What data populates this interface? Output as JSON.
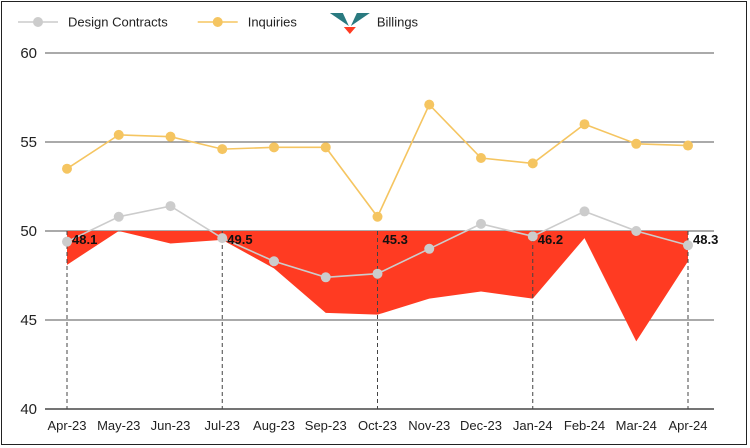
{
  "chart_data": {
    "type": "line",
    "categories": [
      "Apr-23",
      "May-23",
      "Jun-23",
      "Jul-23",
      "Aug-23",
      "Sep-23",
      "Oct-23",
      "Nov-23",
      "Dec-23",
      "Jan-24",
      "Feb-24",
      "Mar-24",
      "Apr-24"
    ],
    "ylim": [
      40,
      60
    ],
    "yticks": [
      40,
      45,
      50,
      55,
      60
    ],
    "baseline": 50,
    "legend_position": "top-left",
    "series": [
      {
        "name": "Design Contracts",
        "kind": "line",
        "color": "#cccccc",
        "values": [
          49.4,
          50.8,
          51.4,
          49.6,
          48.3,
          47.4,
          47.6,
          49.0,
          50.4,
          49.7,
          51.1,
          50.0,
          49.2
        ]
      },
      {
        "name": "Inquiries",
        "kind": "line",
        "color": "#f5c561",
        "values": [
          53.5,
          55.4,
          55.3,
          54.6,
          54.7,
          54.7,
          50.8,
          57.1,
          54.1,
          53.8,
          56.0,
          54.9,
          54.8
        ]
      },
      {
        "name": "Billings",
        "kind": "area",
        "color": "#ff3b22",
        "values": [
          48.1,
          50.0,
          49.3,
          49.5,
          47.9,
          45.4,
          45.3,
          46.2,
          46.6,
          46.2,
          49.6,
          43.8,
          48.3
        ]
      }
    ],
    "annotations": [
      {
        "category": "Apr-23",
        "label": "48.1"
      },
      {
        "category": "Jul-23",
        "label": "49.5"
      },
      {
        "category": "Oct-23",
        "label": "45.3"
      },
      {
        "category": "Jan-24",
        "label": "46.2"
      },
      {
        "category": "Apr-24",
        "label": "48.3"
      }
    ]
  }
}
